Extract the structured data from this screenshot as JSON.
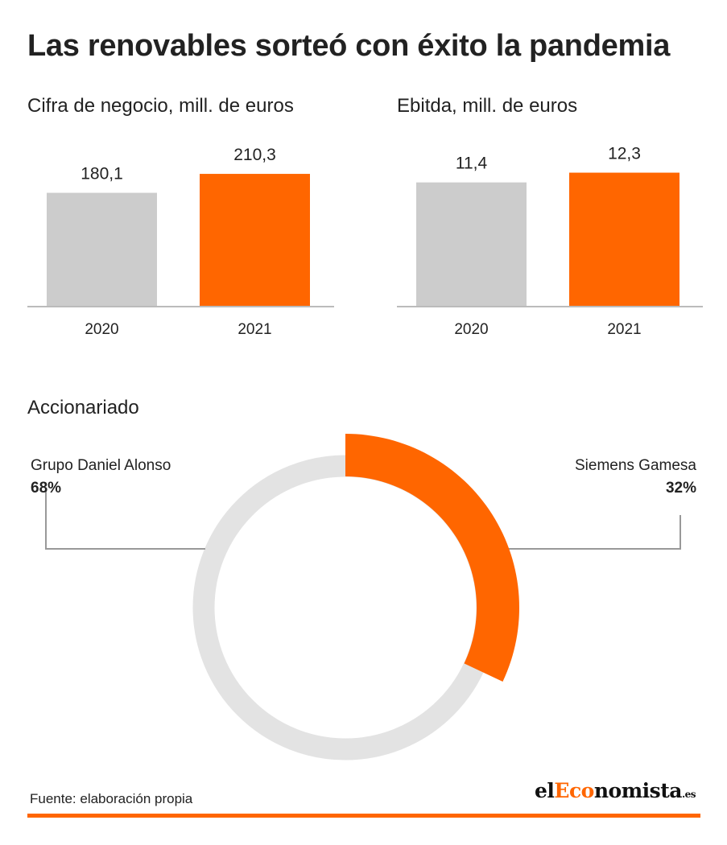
{
  "title": "Las renovables sorteó con éxito la pandemia",
  "colors": {
    "accent": "#ff6600",
    "neutral": "#cccccc",
    "ring_track": "#e3e3e3",
    "axis": "#bbbbbb",
    "leader": "#999999"
  },
  "chart_data": [
    {
      "type": "bar",
      "title": "Cifra de negocio, mill. de euros",
      "categories": [
        "2020",
        "2021"
      ],
      "values": [
        180.1,
        210.3
      ],
      "value_labels": [
        "180,1",
        "210,3"
      ],
      "ylim": [
        0,
        245
      ]
    },
    {
      "type": "bar",
      "title": "Ebitda, mill. de euros",
      "categories": [
        "2020",
        "2021"
      ],
      "values": [
        11.4,
        12.3
      ],
      "value_labels": [
        "11,4",
        "12,3"
      ],
      "ylim": [
        0,
        14.2
      ]
    },
    {
      "type": "pie",
      "title": "Accionariado",
      "labels": [
        "Siemens Gamesa",
        "Grupo Daniel Alonso"
      ],
      "values": [
        32,
        68
      ],
      "value_labels": [
        "32%",
        "68%"
      ]
    }
  ],
  "footer": {
    "source": "Fuente: elaboración propia",
    "logo_prefix": "el",
    "logo_accent": "Eco",
    "logo_rest": "nomista",
    "logo_tld": ".es"
  }
}
